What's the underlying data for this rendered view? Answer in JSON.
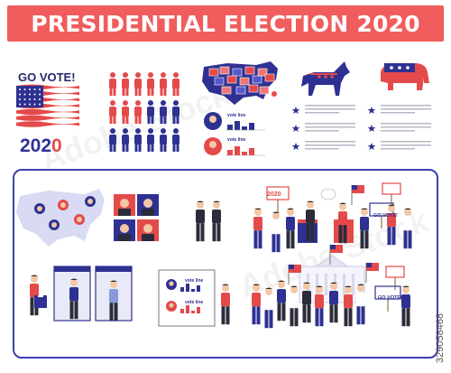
{
  "banner": {
    "title": "PRESIDENTIAL ELECTION 2020"
  },
  "poster": {
    "slogan": "GO VOTE!",
    "year_first": "202",
    "year_last": "0"
  },
  "board_signs": {
    "year": "2020",
    "go_vote_1": "GO VOTE!",
    "go_vote_2": "GO VOTE!"
  },
  "charts": {
    "label": "vote line"
  },
  "stock": {
    "id": "329058468",
    "watermark_text": "Adobe Stock"
  },
  "colors": {
    "banner": "#f15c5c",
    "blue": "#2e3192",
    "red": "#e44a4a",
    "frame": "#3d3fb0"
  }
}
